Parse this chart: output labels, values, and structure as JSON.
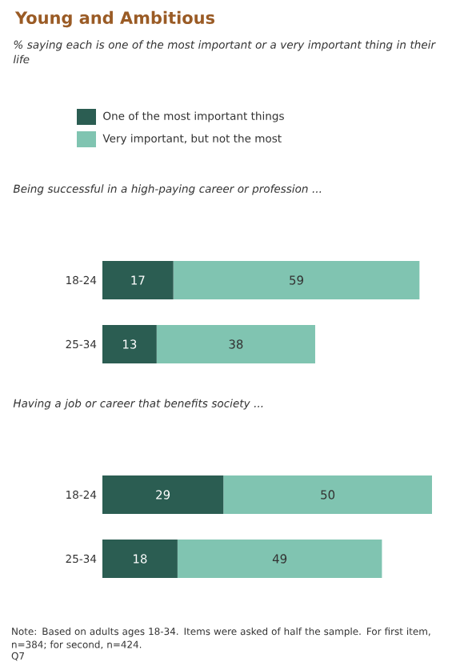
{
  "chart_data": [
    {
      "type": "bar",
      "orientation": "horizontal",
      "stacked": true,
      "title": "Young and Ambitious",
      "subtitle": "% saying each is one of the most important or a very important thing in their life",
      "legend": "top",
      "data_labels": true,
      "annotations": [
        "Being successful in a high-paying career or profession ..."
      ],
      "categories": [
        "18-24",
        "25-34"
      ],
      "series": [
        {
          "name": "One of the most important things",
          "color": "#2b5d52",
          "values": [
            17,
            13
          ]
        },
        {
          "name": "Very important, but not the most",
          "color": "#80c4b1",
          "values": [
            59,
            38
          ]
        }
      ]
    },
    {
      "type": "bar",
      "orientation": "horizontal",
      "stacked": true,
      "data_labels": true,
      "annotations": [
        "Having a job or career that benefits society ...",
        "Note: Based on adults ages 18-34. Items were asked of half the sample. For first item, n=384; for second, n=424.",
        "Q7"
      ],
      "categories": [
        "18-24",
        "25-34"
      ],
      "series": [
        {
          "color": "#2b5d52",
          "values": [
            29,
            18
          ]
        },
        {
          "color": "#80c4b1",
          "values": [
            50,
            49
          ]
        }
      ]
    }
  ]
}
